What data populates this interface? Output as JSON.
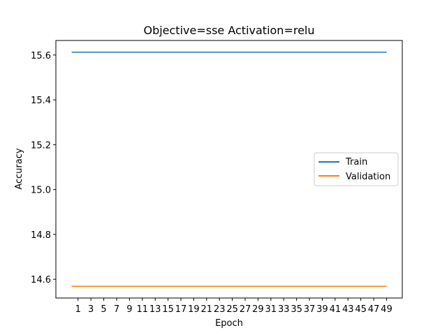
{
  "chart_data": {
    "type": "line",
    "title": "Objective=sse Activation=relu",
    "xlabel": "Epoch",
    "ylabel": "Accuracy",
    "x": [
      0,
      49
    ],
    "xticks": [
      1,
      3,
      5,
      7,
      9,
      11,
      13,
      15,
      17,
      19,
      21,
      23,
      25,
      27,
      29,
      31,
      33,
      35,
      37,
      39,
      41,
      43,
      45,
      47,
      49
    ],
    "yticks": [
      14.6,
      14.8,
      15.0,
      15.2,
      15.4,
      15.6
    ],
    "ytick_labels": [
      "14.6",
      "14.8",
      "15.0",
      "15.2",
      "15.4",
      "15.6"
    ],
    "xlim": [
      -2.45,
      51.45
    ],
    "ylim": [
      14.5165,
      15.6648
    ],
    "legend_position": "center-right",
    "grid": false,
    "series": [
      {
        "name": "Train",
        "color": "#1f77b4",
        "values": [
          15.6126,
          15.6126
        ]
      },
      {
        "name": "Validation",
        "color": "#ff7f0e",
        "values": [
          14.5687,
          14.5687
        ]
      }
    ]
  }
}
